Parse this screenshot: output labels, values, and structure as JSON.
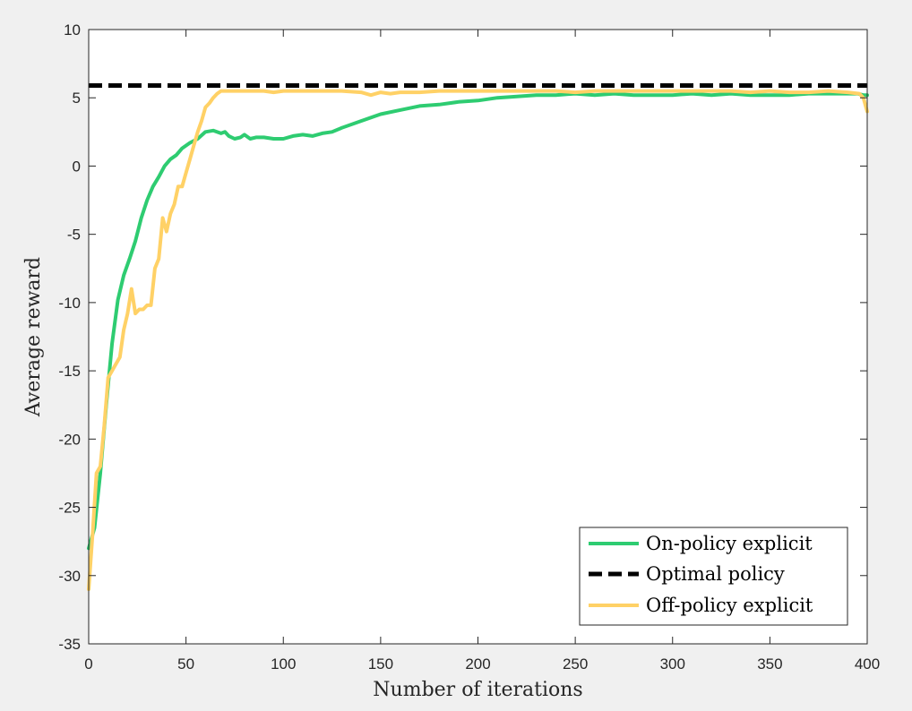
{
  "chart_data": {
    "type": "line",
    "title": "",
    "xlabel": "Number of iterations",
    "ylabel": "Average reward",
    "xlim": [
      0,
      400
    ],
    "ylim": [
      -35,
      10
    ],
    "xticks": [
      0,
      50,
      100,
      150,
      200,
      250,
      300,
      350,
      400
    ],
    "yticks": [
      10,
      5,
      0,
      -5,
      -10,
      -15,
      -20,
      -25,
      -30,
      -35
    ],
    "grid": false,
    "legend_position": "bottom-right",
    "series": [
      {
        "name": "On-policy explicit",
        "color": "#2ecc71",
        "style": "solid",
        "x": [
          0,
          3,
          6,
          9,
          12,
          15,
          18,
          21,
          24,
          27,
          30,
          33,
          36,
          39,
          42,
          45,
          48,
          52,
          56,
          60,
          64,
          68,
          70,
          72,
          75,
          78,
          80,
          83,
          86,
          90,
          95,
          100,
          105,
          110,
          115,
          120,
          125,
          130,
          140,
          150,
          160,
          170,
          180,
          190,
          200,
          210,
          220,
          230,
          240,
          250,
          260,
          270,
          280,
          290,
          300,
          310,
          320,
          330,
          340,
          350,
          360,
          370,
          380,
          390,
          395,
          398,
          400
        ],
        "y": [
          -28,
          -26.5,
          -22.5,
          -17.5,
          -13,
          -9.8,
          -8,
          -6.8,
          -5.5,
          -3.8,
          -2.5,
          -1.5,
          -0.8,
          0,
          0.5,
          0.8,
          1.3,
          1.7,
          2.0,
          2.5,
          2.6,
          2.4,
          2.5,
          2.2,
          2.0,
          2.1,
          2.3,
          2.0,
          2.1,
          2.1,
          2.0,
          2.0,
          2.2,
          2.3,
          2.2,
          2.4,
          2.5,
          2.8,
          3.3,
          3.8,
          4.1,
          4.4,
          4.5,
          4.7,
          4.8,
          5.0,
          5.1,
          5.2,
          5.2,
          5.3,
          5.2,
          5.3,
          5.2,
          5.2,
          5.2,
          5.3,
          5.2,
          5.3,
          5.2,
          5.2,
          5.2,
          5.3,
          5.3,
          5.3,
          5.3,
          5.2,
          5.2
        ]
      },
      {
        "name": "Optimal policy",
        "color": "#000000",
        "style": "dashed",
        "x": [
          0,
          400
        ],
        "y": [
          5.9,
          5.9
        ]
      },
      {
        "name": "Off-policy explicit",
        "color": "#ffd166",
        "style": "solid",
        "x": [
          0,
          2,
          4,
          6,
          8,
          10,
          12,
          14,
          16,
          18,
          20,
          22,
          24,
          26,
          28,
          30,
          32,
          34,
          36,
          38,
          40,
          42,
          44,
          46,
          48,
          50,
          52,
          54,
          56,
          58,
          60,
          62,
          64,
          66,
          68,
          70,
          75,
          80,
          85,
          90,
          95,
          100,
          110,
          120,
          130,
          140,
          145,
          150,
          155,
          160,
          170,
          180,
          190,
          200,
          210,
          220,
          230,
          240,
          250,
          260,
          270,
          280,
          290,
          300,
          310,
          320,
          330,
          340,
          350,
          360,
          370,
          380,
          390,
          396,
          398,
          400
        ],
        "y": [
          -31,
          -27,
          -22.5,
          -22,
          -19,
          -15.5,
          -15,
          -14.5,
          -14,
          -12,
          -10.8,
          -9,
          -10.8,
          -10.5,
          -10.5,
          -10.2,
          -10.2,
          -7.5,
          -6.8,
          -3.8,
          -4.8,
          -3.5,
          -2.8,
          -1.5,
          -1.5,
          -0.5,
          0.5,
          1.5,
          2.5,
          3.3,
          4.3,
          4.6,
          5.0,
          5.3,
          5.5,
          5.5,
          5.5,
          5.5,
          5.5,
          5.5,
          5.4,
          5.5,
          5.5,
          5.5,
          5.5,
          5.4,
          5.2,
          5.4,
          5.3,
          5.4,
          5.4,
          5.5,
          5.5,
          5.5,
          5.5,
          5.5,
          5.5,
          5.5,
          5.4,
          5.5,
          5.5,
          5.5,
          5.5,
          5.5,
          5.5,
          5.5,
          5.5,
          5.4,
          5.5,
          5.4,
          5.4,
          5.5,
          5.4,
          5.3,
          5.0,
          4.0
        ]
      }
    ]
  }
}
